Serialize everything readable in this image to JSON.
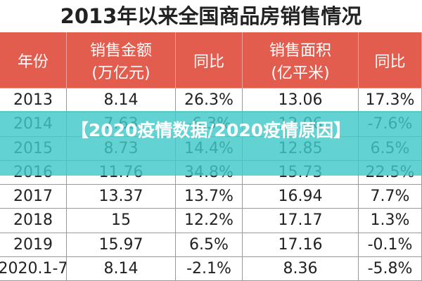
{
  "title": "2013年以来全国商品房销售情况",
  "table": {
    "headers": [
      [
        "年份"
      ],
      [
        "销售金额",
        "(万亿元)"
      ],
      [
        "同比"
      ],
      [
        "销售面积",
        "(亿平米)"
      ],
      [
        "同比"
      ]
    ],
    "rows": [
      [
        "2013",
        "8.14",
        "26.3%",
        "13.06",
        "17.3%"
      ],
      [
        "2014",
        "7.63",
        "-6.3%",
        "12.06",
        "-7.6%"
      ],
      [
        "2015",
        "8.73",
        "14.4%",
        "12.85",
        "6.5%"
      ],
      [
        "2016",
        "11.76",
        "34.8%",
        "15.73",
        "22.5%"
      ],
      [
        "2017",
        "13.37",
        "13.7%",
        "16.94",
        "7.7%"
      ],
      [
        "2018",
        "15",
        "12.2%",
        "17.17",
        "1.3%"
      ],
      [
        "2019",
        "15.97",
        "6.5%",
        "17.16",
        "-0.1%"
      ],
      [
        "2020.1-7",
        "8.14",
        "-2.1%",
        "8.36",
        "-5.8%"
      ]
    ]
  },
  "banner": "【2020疫情数据/2020疫情原因】"
}
